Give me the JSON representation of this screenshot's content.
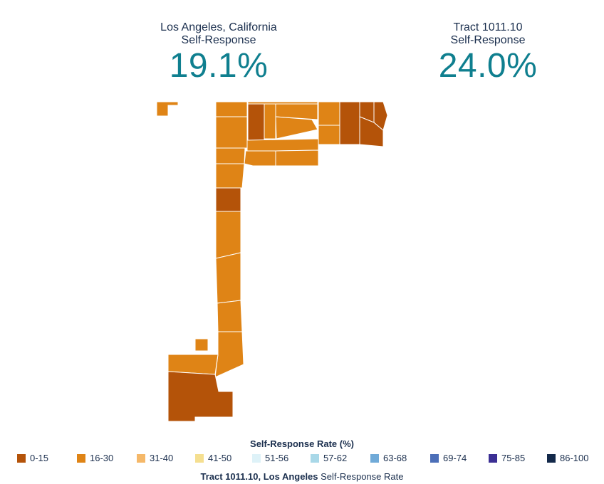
{
  "stats": {
    "left": {
      "line1": "Los Angeles, California",
      "line2": "Self-Response",
      "value": "19.1%"
    },
    "right": {
      "line1": "Tract 1011.10",
      "line2": "Self-Response",
      "value": "24.0%"
    }
  },
  "legend": {
    "title": "Self-Response Rate (%)",
    "items": [
      {
        "label": "0-15",
        "color": "#b45309"
      },
      {
        "label": "16-30",
        "color": "#df8416"
      },
      {
        "label": "31-40",
        "color": "#f5b869"
      },
      {
        "label": "41-50",
        "color": "#f5df90"
      },
      {
        "label": "51-56",
        "color": "#def2f8"
      },
      {
        "label": "57-62",
        "color": "#a9d8e8"
      },
      {
        "label": "63-68",
        "color": "#70aad8"
      },
      {
        "label": "69-74",
        "color": "#4c6fb8"
      },
      {
        "label": "75-85",
        "color": "#3b2f94"
      },
      {
        "label": "86-100",
        "color": "#13294a"
      }
    ]
  },
  "caption": {
    "bold": "Tract 1011.10, Los Angeles",
    "rest": " Self-Response Rate"
  },
  "map": {
    "colors": {
      "low": "#b45309",
      "mid": "#df8416"
    }
  }
}
